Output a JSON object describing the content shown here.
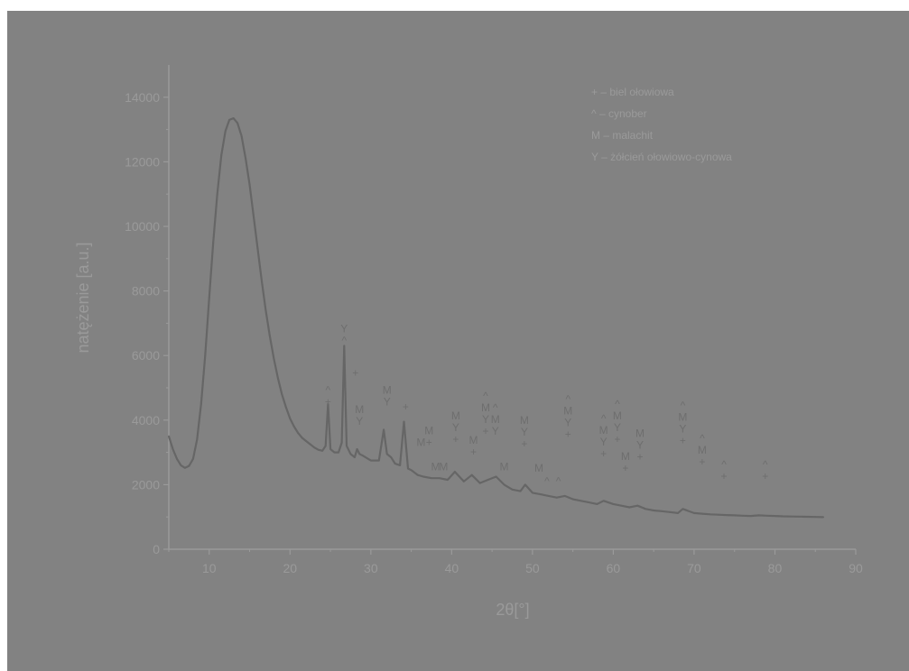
{
  "chart_data": {
    "type": "line",
    "title": "",
    "xlabel": "2θ[°]",
    "ylabel": "natężenie [a.u.]",
    "xlim": [
      5,
      90
    ],
    "ylim": [
      0,
      15000
    ],
    "xticks": [
      "10",
      "20",
      "30",
      "40",
      "50",
      "60",
      "70",
      "80",
      "90"
    ],
    "yticks": [
      "0",
      "2000",
      "4000",
      "6000",
      "8000",
      "10000",
      "12000",
      "14000"
    ],
    "grid": false,
    "legend_position": "top-right",
    "legend": [
      {
        "symbol": "+",
        "text": "+  – biel ołowiowa"
      },
      {
        "symbol": "^",
        "text": "^  – cynober"
      },
      {
        "symbol": "M",
        "text": "M – malachit"
      },
      {
        "symbol": "Y",
        "text": "Y –  żółcień ołowiowo-cynowa"
      }
    ],
    "series": [
      {
        "x": [
          5,
          5.5,
          6,
          6.5,
          7,
          7.5,
          8,
          8.5,
          9,
          9.5,
          10,
          10.5,
          11,
          11.5,
          12,
          12.5,
          13,
          13.5,
          14,
          14.5,
          15,
          15.5,
          16,
          16.5,
          17,
          17.5,
          18,
          18.5,
          19,
          19.5,
          20,
          20.5,
          21,
          21.5,
          22,
          22.5,
          23,
          23.5,
          24,
          24.4,
          24.7,
          25,
          25.5,
          26,
          26.4,
          26.7,
          27,
          27.5,
          28,
          28.3,
          28.6,
          29,
          30,
          31,
          31.6,
          32,
          32.5,
          33,
          33.6,
          34.1,
          34.6,
          35,
          35.8,
          36.5,
          37.5,
          38.5,
          39.5,
          40.4,
          41.5,
          42.5,
          43.5,
          44.5,
          45.5,
          46.5,
          47.5,
          48.5,
          49.1,
          50,
          51,
          52,
          53,
          54,
          55,
          56,
          57,
          58,
          58.8,
          60,
          61,
          62,
          63,
          64,
          65,
          66,
          67,
          68,
          68.6,
          70,
          71,
          72,
          73,
          74,
          75,
          76,
          77,
          78,
          79,
          80,
          81,
          82,
          83,
          84,
          85,
          86
        ],
        "values": [
          3500,
          3100,
          2800,
          2600,
          2520,
          2580,
          2800,
          3400,
          4500,
          6000,
          7800,
          9500,
          11000,
          12200,
          12950,
          13300,
          13350,
          13200,
          12800,
          12100,
          11300,
          10300,
          9300,
          8300,
          7400,
          6600,
          5900,
          5300,
          4800,
          4400,
          4050,
          3800,
          3600,
          3450,
          3350,
          3250,
          3150,
          3080,
          3050,
          3200,
          4500,
          3100,
          3000,
          3000,
          3300,
          6300,
          3200,
          2950,
          2850,
          3100,
          2950,
          2900,
          2750,
          2750,
          3700,
          2950,
          2850,
          2650,
          2600,
          3950,
          2500,
          2450,
          2300,
          2250,
          2200,
          2200,
          2150,
          2400,
          2100,
          2300,
          2050,
          2150,
          2250,
          2000,
          1850,
          1800,
          2000,
          1750,
          1700,
          1650,
          1600,
          1650,
          1550,
          1500,
          1450,
          1400,
          1500,
          1400,
          1350,
          1300,
          1350,
          1250,
          1200,
          1180,
          1150,
          1120,
          1250,
          1120,
          1100,
          1080,
          1070,
          1060,
          1050,
          1040,
          1030,
          1050,
          1040,
          1030,
          1020,
          1015,
          1010,
          1005,
          1000,
          995
        ]
      }
    ],
    "annotations": [
      {
        "x": 24.7,
        "y": 4450,
        "labels": [
          "^",
          "+"
        ]
      },
      {
        "x": 26.7,
        "y": 6350,
        "labels": [
          "Y",
          "^"
        ]
      },
      {
        "x": 28.1,
        "y": 5350,
        "labels": [
          "+"
        ]
      },
      {
        "x": 28.6,
        "y": 3850,
        "labels": [
          "M",
          "Y"
        ]
      },
      {
        "x": 32.0,
        "y": 4450,
        "labels": [
          "M",
          "Y"
        ]
      },
      {
        "x": 34.3,
        "y": 4300,
        "labels": [
          "+"
        ]
      },
      {
        "x": 36.2,
        "y": 3200,
        "labels": [
          "M"
        ]
      },
      {
        "x": 37.2,
        "y": 3200,
        "labels": [
          "M",
          "+"
        ]
      },
      {
        "x": 38.0,
        "y": 2450,
        "labels": [
          "M"
        ]
      },
      {
        "x": 39.0,
        "y": 2450,
        "labels": [
          "M"
        ]
      },
      {
        "x": 40.5,
        "y": 3300,
        "labels": [
          "M",
          "Y",
          "+"
        ]
      },
      {
        "x": 42.7,
        "y": 2900,
        "labels": [
          "M",
          "+"
        ]
      },
      {
        "x": 44.2,
        "y": 3550,
        "labels": [
          "^",
          "M",
          "Y",
          "+"
        ]
      },
      {
        "x": 45.4,
        "y": 3550,
        "labels": [
          "^",
          "M",
          "Y"
        ]
      },
      {
        "x": 46.5,
        "y": 2450,
        "labels": [
          "M"
        ]
      },
      {
        "x": 49.0,
        "y": 3150,
        "labels": [
          "M",
          "Y",
          "+"
        ]
      },
      {
        "x": 50.8,
        "y": 2400,
        "labels": [
          "M"
        ]
      },
      {
        "x": 51.8,
        "y": 2000,
        "labels": [
          "^"
        ]
      },
      {
        "x": 53.2,
        "y": 2000,
        "labels": [
          "^"
        ]
      },
      {
        "x": 54.4,
        "y": 3450,
        "labels": [
          "^",
          "M",
          "Y",
          "+"
        ]
      },
      {
        "x": 58.8,
        "y": 2850,
        "labels": [
          "^",
          "M",
          "Y",
          "+"
        ]
      },
      {
        "x": 60.5,
        "y": 3300,
        "labels": [
          "^",
          "M",
          "Y",
          "+"
        ]
      },
      {
        "x": 61.5,
        "y": 2400,
        "labels": [
          "M",
          "+"
        ]
      },
      {
        "x": 63.3,
        "y": 2750,
        "labels": [
          "M",
          "Y",
          "+"
        ]
      },
      {
        "x": 68.6,
        "y": 3250,
        "labels": [
          "^",
          "M",
          "Y",
          "+"
        ]
      },
      {
        "x": 71.0,
        "y": 2600,
        "labels": [
          "^",
          "M",
          "+"
        ]
      },
      {
        "x": 73.7,
        "y": 2150,
        "labels": [
          "^",
          "+"
        ]
      },
      {
        "x": 78.8,
        "y": 2150,
        "labels": [
          "^",
          "+"
        ]
      }
    ],
    "colors": {
      "background": "#828282",
      "axis": "#9a9a9a",
      "line": "#666666",
      "annotation": "#6e6e6e",
      "page": "#ffffff"
    }
  }
}
